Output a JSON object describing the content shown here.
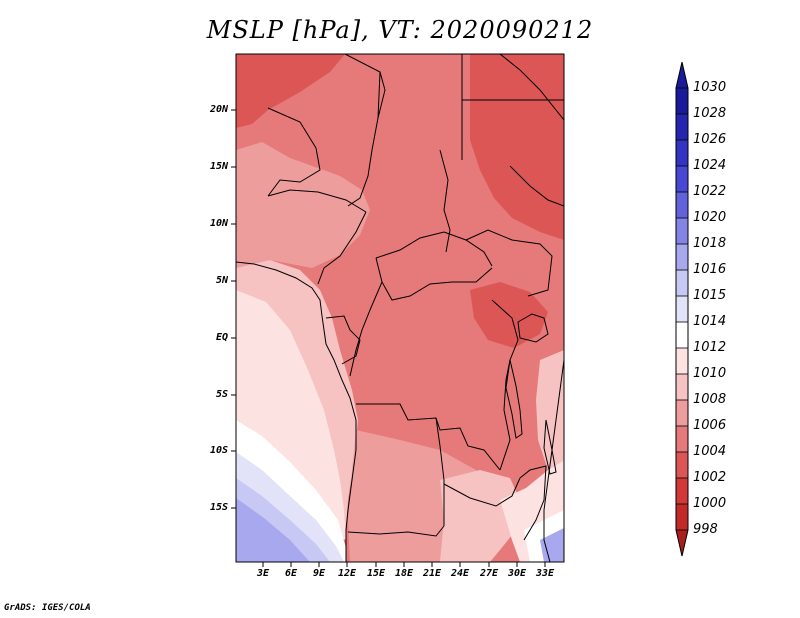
{
  "title": "MSLP [hPa], VT: 2020090212",
  "map": {
    "lat_labels": [
      "20N",
      "15N",
      "10N",
      "5N",
      "EQ",
      "5S",
      "10S",
      "15S"
    ],
    "lon_labels": [
      "3E",
      "6E",
      "9E",
      "12E",
      "15E",
      "18E",
      "21E",
      "24E",
      "27E",
      "30E",
      "33E"
    ]
  },
  "colorbar": {
    "labels": [
      "1030",
      "1028",
      "1026",
      "1024",
      "1022",
      "1020",
      "1018",
      "1016",
      "1015",
      "1014",
      "1012",
      "1010",
      "1008",
      "1006",
      "1004",
      "1002",
      "1000",
      "998"
    ],
    "colors": {
      "bin_1028_1030": "#1a1a9a",
      "bin_1026_1028": "#2525b0",
      "bin_1024_1026": "#3434c4",
      "bin_1022_1024": "#4848d4",
      "bin_1020_1022": "#6262dc",
      "bin_1018_1020": "#8484e6",
      "bin_1016_1018": "#a8a8ef",
      "bin_1015_1016": "#c8c8f5",
      "bin_1014_1015": "#e2e2f8",
      "bin_1012_1014": "#ffffff",
      "bin_1010_1012": "#fde2e2",
      "bin_1008_1010": "#f6c2c2",
      "bin_1006_1008": "#ee9d9d",
      "bin_1004_1006": "#e67979",
      "bin_1002_1004": "#dc5656",
      "bin_1000_1002": "#d23838",
      "bin_998_1000": "#c22a2a",
      "bin_lt_998": "#aa1e1e"
    }
  },
  "credit": "GrADS: IGES/COLA"
}
